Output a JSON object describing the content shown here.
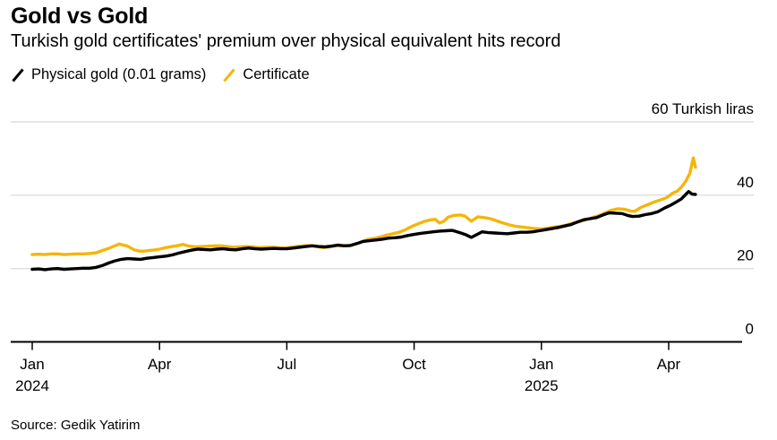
{
  "header": {
    "title": "Gold vs Gold",
    "subtitle": "Turkish gold certificates' premium over physical equivalent hits record"
  },
  "legend": [
    {
      "label": "Physical gold (0.01 grams)",
      "color": "#000000"
    },
    {
      "label": "Certificate",
      "color": "#f5b50a"
    }
  ],
  "source": "Source: Gedik Yatirim",
  "chart_data": {
    "type": "line",
    "title": "Gold vs Gold",
    "subtitle": "Turkish gold certificates' premium over physical equivalent hits record",
    "x_unit": "months since Jan 2024",
    "xlim": [
      -0.5,
      16.3
    ],
    "ylim": [
      0,
      65
    ],
    "grid": true,
    "grid_color": "#d6d6d6",
    "axis_color": "#000000",
    "y_ticks": [
      {
        "value": 60,
        "label": "60 Turkish liras"
      },
      {
        "value": 40,
        "label": "40"
      },
      {
        "value": 20,
        "label": "20"
      },
      {
        "value": 0,
        "label": "0"
      }
    ],
    "x_ticks": [
      {
        "m": 0,
        "label": "Jan",
        "year": "2024"
      },
      {
        "m": 3,
        "label": "Apr",
        "year": ""
      },
      {
        "m": 6,
        "label": "Jul",
        "year": ""
      },
      {
        "m": 9,
        "label": "Oct",
        "year": ""
      },
      {
        "m": 12,
        "label": "Jan",
        "year": "2025"
      },
      {
        "m": 15,
        "label": "Apr",
        "year": ""
      }
    ],
    "series": [
      {
        "name": "Certificate",
        "color": "#f5b50a",
        "points": [
          [
            0.0,
            23.8
          ],
          [
            0.15,
            23.9
          ],
          [
            0.3,
            23.8
          ],
          [
            0.45,
            24.0
          ],
          [
            0.6,
            24.0
          ],
          [
            0.75,
            23.8
          ],
          [
            0.9,
            23.9
          ],
          [
            1.05,
            24.0
          ],
          [
            1.2,
            24.0
          ],
          [
            1.35,
            24.1
          ],
          [
            1.5,
            24.3
          ],
          [
            1.65,
            24.9
          ],
          [
            1.8,
            25.5
          ],
          [
            1.95,
            26.2
          ],
          [
            2.05,
            26.7
          ],
          [
            2.15,
            26.4
          ],
          [
            2.25,
            26.1
          ],
          [
            2.4,
            25.1
          ],
          [
            2.5,
            24.8
          ],
          [
            2.6,
            24.7
          ],
          [
            2.75,
            24.9
          ],
          [
            2.9,
            25.1
          ],
          [
            3.0,
            25.3
          ],
          [
            3.15,
            25.7
          ],
          [
            3.3,
            26.0
          ],
          [
            3.45,
            26.3
          ],
          [
            3.55,
            26.6
          ],
          [
            3.7,
            26.1
          ],
          [
            3.85,
            25.9
          ],
          [
            4.0,
            26.0
          ],
          [
            4.15,
            26.1
          ],
          [
            4.3,
            26.2
          ],
          [
            4.45,
            26.2
          ],
          [
            4.6,
            26.0
          ],
          [
            4.75,
            25.8
          ],
          [
            4.9,
            25.9
          ],
          [
            5.05,
            26.0
          ],
          [
            5.2,
            25.9
          ],
          [
            5.35,
            25.7
          ],
          [
            5.5,
            25.8
          ],
          [
            5.65,
            25.8
          ],
          [
            5.8,
            25.7
          ],
          [
            5.95,
            25.6
          ],
          [
            6.1,
            25.8
          ],
          [
            6.25,
            26.0
          ],
          [
            6.4,
            26.2
          ],
          [
            6.55,
            26.3
          ],
          [
            6.7,
            26.0
          ],
          [
            6.85,
            25.7
          ],
          [
            7.0,
            25.9
          ],
          [
            7.15,
            26.2
          ],
          [
            7.3,
            26.3
          ],
          [
            7.45,
            26.2
          ],
          [
            7.6,
            26.6
          ],
          [
            7.75,
            27.2
          ],
          [
            7.9,
            27.9
          ],
          [
            8.05,
            28.2
          ],
          [
            8.2,
            28.6
          ],
          [
            8.35,
            29.1
          ],
          [
            8.5,
            29.5
          ],
          [
            8.65,
            29.9
          ],
          [
            8.8,
            30.6
          ],
          [
            8.95,
            31.5
          ],
          [
            9.1,
            32.2
          ],
          [
            9.25,
            32.9
          ],
          [
            9.4,
            33.3
          ],
          [
            9.5,
            33.4
          ],
          [
            9.6,
            32.4
          ],
          [
            9.7,
            32.9
          ],
          [
            9.8,
            34.0
          ],
          [
            9.95,
            34.5
          ],
          [
            10.1,
            34.6
          ],
          [
            10.2,
            34.3
          ],
          [
            10.35,
            32.9
          ],
          [
            10.5,
            34.1
          ],
          [
            10.65,
            33.9
          ],
          [
            10.8,
            33.6
          ],
          [
            10.95,
            33.0
          ],
          [
            11.1,
            32.4
          ],
          [
            11.25,
            31.9
          ],
          [
            11.4,
            31.5
          ],
          [
            11.55,
            31.3
          ],
          [
            11.7,
            31.1
          ],
          [
            11.85,
            30.9
          ],
          [
            12.0,
            30.8
          ],
          [
            12.15,
            31.0
          ],
          [
            12.3,
            31.3
          ],
          [
            12.45,
            31.5
          ],
          [
            12.6,
            31.9
          ],
          [
            12.75,
            32.4
          ],
          [
            12.9,
            32.8
          ],
          [
            13.05,
            33.3
          ],
          [
            13.2,
            33.9
          ],
          [
            13.35,
            34.4
          ],
          [
            13.5,
            35.2
          ],
          [
            13.65,
            35.9
          ],
          [
            13.8,
            36.3
          ],
          [
            13.95,
            36.2
          ],
          [
            14.1,
            35.7
          ],
          [
            14.2,
            35.6
          ],
          [
            14.35,
            36.7
          ],
          [
            14.5,
            37.4
          ],
          [
            14.65,
            38.1
          ],
          [
            14.8,
            38.7
          ],
          [
            14.95,
            39.3
          ],
          [
            15.1,
            40.6
          ],
          [
            15.2,
            41.1
          ],
          [
            15.3,
            42.2
          ],
          [
            15.4,
            43.8
          ],
          [
            15.5,
            46.0
          ],
          [
            15.58,
            50.2
          ],
          [
            15.63,
            47.6
          ]
        ]
      },
      {
        "name": "Physical gold (0.01 grams)",
        "color": "#000000",
        "points": [
          [
            0.0,
            19.8
          ],
          [
            0.15,
            19.9
          ],
          [
            0.3,
            19.7
          ],
          [
            0.45,
            19.9
          ],
          [
            0.6,
            20.0
          ],
          [
            0.75,
            19.8
          ],
          [
            0.9,
            19.9
          ],
          [
            1.05,
            20.0
          ],
          [
            1.2,
            20.1
          ],
          [
            1.35,
            20.1
          ],
          [
            1.5,
            20.3
          ],
          [
            1.65,
            20.8
          ],
          [
            1.8,
            21.5
          ],
          [
            1.95,
            22.1
          ],
          [
            2.1,
            22.5
          ],
          [
            2.25,
            22.7
          ],
          [
            2.4,
            22.6
          ],
          [
            2.55,
            22.5
          ],
          [
            2.7,
            22.8
          ],
          [
            2.85,
            23.0
          ],
          [
            3.0,
            23.2
          ],
          [
            3.15,
            23.4
          ],
          [
            3.3,
            23.7
          ],
          [
            3.45,
            24.2
          ],
          [
            3.6,
            24.6
          ],
          [
            3.75,
            25.0
          ],
          [
            3.9,
            25.3
          ],
          [
            4.05,
            25.2
          ],
          [
            4.2,
            25.1
          ],
          [
            4.35,
            25.3
          ],
          [
            4.5,
            25.4
          ],
          [
            4.65,
            25.2
          ],
          [
            4.8,
            25.1
          ],
          [
            4.95,
            25.4
          ],
          [
            5.1,
            25.6
          ],
          [
            5.25,
            25.4
          ],
          [
            5.4,
            25.3
          ],
          [
            5.55,
            25.4
          ],
          [
            5.7,
            25.5
          ],
          [
            5.85,
            25.4
          ],
          [
            6.0,
            25.4
          ],
          [
            6.15,
            25.6
          ],
          [
            6.3,
            25.8
          ],
          [
            6.45,
            26.0
          ],
          [
            6.6,
            26.2
          ],
          [
            6.75,
            26.0
          ],
          [
            6.9,
            25.9
          ],
          [
            7.05,
            26.1
          ],
          [
            7.2,
            26.4
          ],
          [
            7.35,
            26.2
          ],
          [
            7.5,
            26.3
          ],
          [
            7.65,
            26.8
          ],
          [
            7.8,
            27.4
          ],
          [
            7.95,
            27.6
          ],
          [
            8.1,
            27.8
          ],
          [
            8.25,
            28.0
          ],
          [
            8.4,
            28.3
          ],
          [
            8.55,
            28.4
          ],
          [
            8.7,
            28.6
          ],
          [
            8.85,
            29.0
          ],
          [
            9.0,
            29.3
          ],
          [
            9.15,
            29.6
          ],
          [
            9.3,
            29.8
          ],
          [
            9.45,
            30.0
          ],
          [
            9.6,
            30.2
          ],
          [
            9.75,
            30.3
          ],
          [
            9.9,
            30.4
          ],
          [
            10.05,
            29.9
          ],
          [
            10.2,
            29.3
          ],
          [
            10.35,
            28.5
          ],
          [
            10.5,
            29.4
          ],
          [
            10.6,
            30.0
          ],
          [
            10.75,
            29.8
          ],
          [
            10.9,
            29.7
          ],
          [
            11.05,
            29.6
          ],
          [
            11.2,
            29.5
          ],
          [
            11.35,
            29.7
          ],
          [
            11.5,
            29.9
          ],
          [
            11.65,
            29.9
          ],
          [
            11.8,
            30.0
          ],
          [
            11.95,
            30.3
          ],
          [
            12.1,
            30.6
          ],
          [
            12.25,
            30.9
          ],
          [
            12.4,
            31.2
          ],
          [
            12.55,
            31.6
          ],
          [
            12.7,
            32.0
          ],
          [
            12.85,
            32.7
          ],
          [
            13.0,
            33.3
          ],
          [
            13.15,
            33.6
          ],
          [
            13.3,
            33.9
          ],
          [
            13.45,
            34.6
          ],
          [
            13.6,
            35.2
          ],
          [
            13.75,
            35.1
          ],
          [
            13.9,
            35.0
          ],
          [
            14.05,
            34.4
          ],
          [
            14.15,
            34.2
          ],
          [
            14.3,
            34.3
          ],
          [
            14.45,
            34.7
          ],
          [
            14.6,
            35.0
          ],
          [
            14.75,
            35.5
          ],
          [
            14.9,
            36.5
          ],
          [
            15.05,
            37.3
          ],
          [
            15.2,
            38.3
          ],
          [
            15.3,
            39.0
          ],
          [
            15.4,
            40.2
          ],
          [
            15.47,
            41.0
          ],
          [
            15.55,
            40.3
          ],
          [
            15.63,
            40.2
          ]
        ]
      }
    ]
  }
}
